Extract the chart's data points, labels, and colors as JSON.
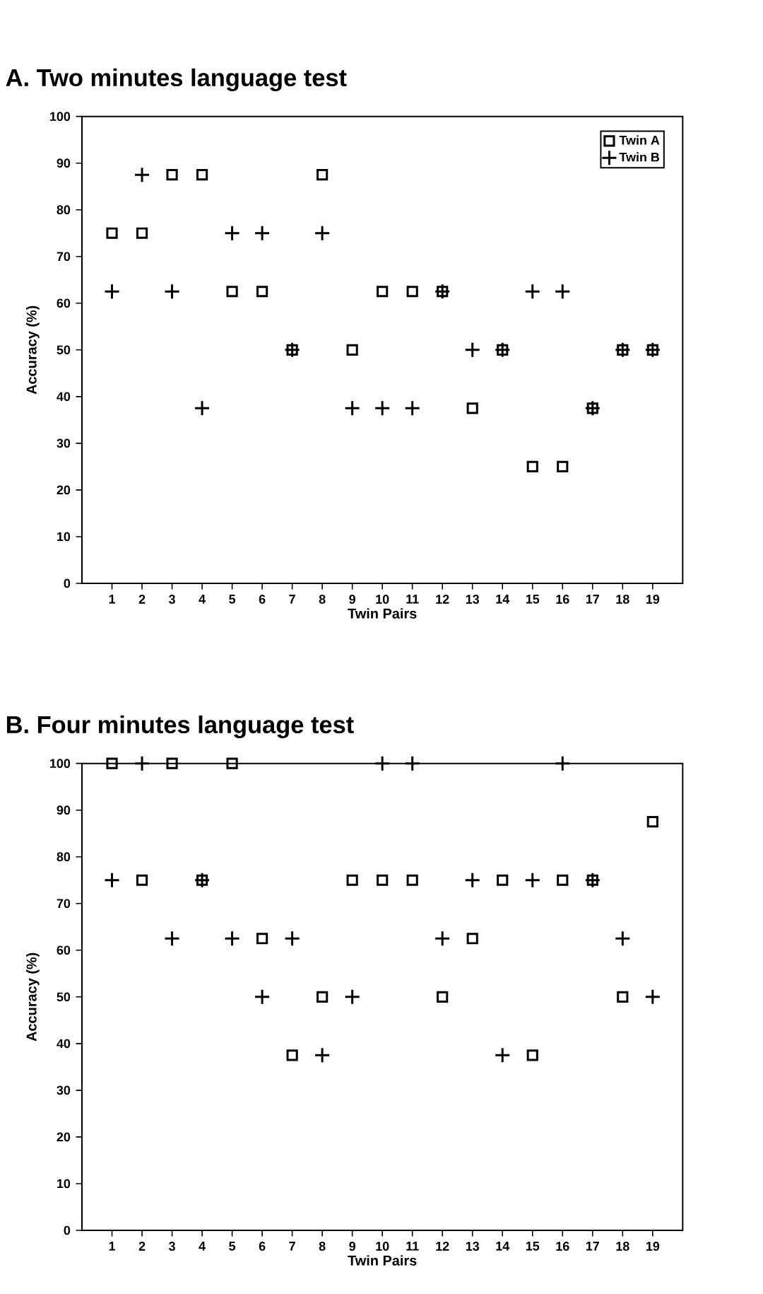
{
  "chart_data": [
    {
      "type": "scatter",
      "title": "A. Two minutes language test",
      "xlabel": "Twin Pairs",
      "ylabel": "Accuracy (%)",
      "categories": [
        "1",
        "2",
        "3",
        "4",
        "5",
        "6",
        "7",
        "8",
        "9",
        "10",
        "11",
        "12",
        "13",
        "14",
        "15",
        "16",
        "17",
        "18",
        "19"
      ],
      "ylim": [
        0,
        100
      ],
      "yticks": [
        0,
        10,
        20,
        30,
        40,
        50,
        60,
        70,
        80,
        90,
        100
      ],
      "grid": false,
      "legend": "top right",
      "series": [
        {
          "name": "Twin A",
          "color": "#000000",
          "marker": "square",
          "values": [
            75,
            75,
            87.5,
            87.5,
            62.5,
            62.5,
            50,
            87.5,
            50,
            62.5,
            62.5,
            62.5,
            37.5,
            50,
            25,
            25,
            37.5,
            50,
            50
          ]
        },
        {
          "name": "Twin B",
          "color": "#000000",
          "marker": "cross",
          "values": [
            62.5,
            87.5,
            62.5,
            37.5,
            75,
            75,
            50,
            75,
            37.5,
            37.5,
            37.5,
            62.5,
            50,
            50,
            62.5,
            62.5,
            37.5,
            50,
            50
          ]
        }
      ]
    },
    {
      "type": "scatter",
      "title": "B. Four minutes language test",
      "xlabel": "Twin Pairs",
      "ylabel": "Accuracy (%)",
      "categories": [
        "1",
        "2",
        "3",
        "4",
        "5",
        "6",
        "7",
        "8",
        "9",
        "10",
        "11",
        "12",
        "13",
        "14",
        "15",
        "16",
        "17",
        "18",
        "19"
      ],
      "ylim": [
        0,
        100
      ],
      "yticks": [
        0,
        10,
        20,
        30,
        40,
        50,
        60,
        70,
        80,
        90,
        100
      ],
      "grid": false,
      "legend": false,
      "series": [
        {
          "color": "#000000",
          "marker": "square",
          "values": [
            100,
            75,
            100,
            75,
            100,
            62.5,
            37.5,
            50,
            75,
            75,
            75,
            50,
            62.5,
            75,
            37.5,
            75,
            75,
            50,
            87.5
          ]
        },
        {
          "color": "#000000",
          "marker": "cross",
          "values": [
            75,
            100,
            62.5,
            75,
            62.5,
            50,
            62.5,
            37.5,
            50,
            100,
            100,
            62.5,
            75,
            37.5,
            75,
            100,
            75,
            62.5,
            50
          ]
        }
      ]
    }
  ]
}
